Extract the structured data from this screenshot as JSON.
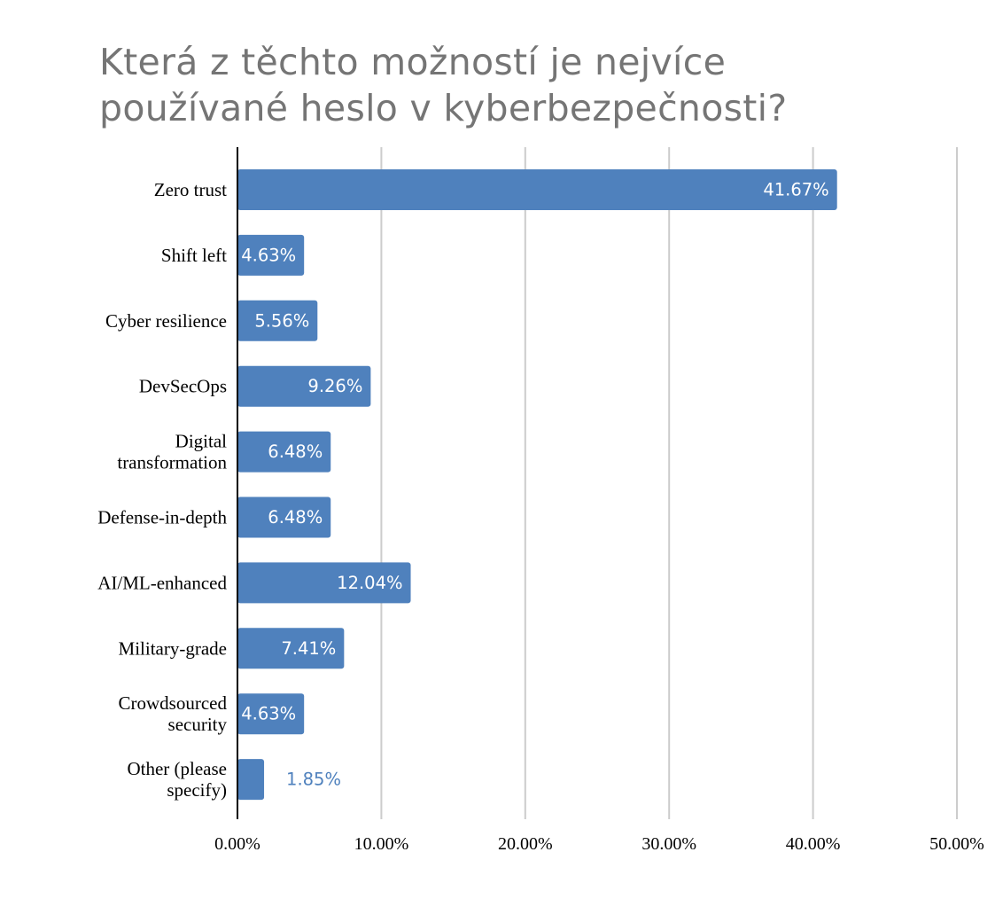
{
  "chart_data": {
    "type": "bar",
    "orientation": "horizontal",
    "title": "Která z těchto možností je nejvíce\npoužívané heslo v kyberbezpečnosti?",
    "categories": [
      "Zero trust",
      "Shift left",
      "Cyber resilience",
      "DevSecOps",
      "Digital transformation",
      "Defense-in-depth",
      "AI/ML-enhanced",
      "Military-grade",
      "Crowdsourced security",
      "Other (please specify)"
    ],
    "category_lines": [
      [
        "Zero trust"
      ],
      [
        "Shift left"
      ],
      [
        "Cyber resilience"
      ],
      [
        "DevSecOps"
      ],
      [
        "Digital",
        "transformation"
      ],
      [
        "Defense-in-depth"
      ],
      [
        "AI/ML-enhanced"
      ],
      [
        "Military-grade"
      ],
      [
        "Crowdsourced",
        "security"
      ],
      [
        "Other (please",
        "specify)"
      ]
    ],
    "values": [
      41.67,
      4.63,
      5.56,
      9.26,
      6.48,
      6.48,
      12.04,
      7.41,
      4.63,
      1.85
    ],
    "data_labels": [
      "41.67%",
      "4.63%",
      "5.56%",
      "9.26%",
      "6.48%",
      "6.48%",
      "12.04%",
      "7.41%",
      "4.63%",
      "1.85%"
    ],
    "xlim": [
      0,
      50
    ],
    "x_ticks": [
      0,
      10,
      20,
      30,
      40,
      50
    ],
    "x_tick_labels": [
      "0.00%",
      "10.00%",
      "20.00%",
      "30.00%",
      "40.00%",
      "50.00%"
    ],
    "xlabel": "",
    "ylabel": "",
    "grid": "vertical",
    "legend": "none",
    "bar_color": "#4f81bd",
    "label_inside_color": "#ffffff",
    "label_outside_color": "#4f81bd",
    "gridline_color": "#cccccc",
    "axis_color": "#000000"
  }
}
